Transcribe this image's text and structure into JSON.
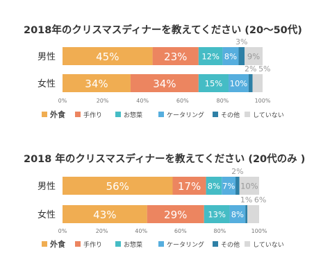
{
  "chart_data": [
    {
      "type": "bar",
      "orientation": "horizontal",
      "stacked": true,
      "title": "2018年のクリスマスディナーを教えてください (20〜50代)",
      "categories": [
        "男性",
        "女性"
      ],
      "series": [
        {
          "name": "外食",
          "values": [
            45,
            34
          ],
          "labels": [
            "45%",
            "34%"
          ]
        },
        {
          "name": "手作り",
          "values": [
            23,
            34
          ],
          "labels": [
            "23%",
            "34%"
          ]
        },
        {
          "name": "お惣菜",
          "values": [
            12,
            15
          ],
          "labels": [
            "12%",
            "15%"
          ]
        },
        {
          "name": "ケータリング",
          "values": [
            8,
            10
          ],
          "labels": [
            "8%",
            "10%"
          ]
        },
        {
          "name": "その他",
          "values": [
            3,
            2
          ],
          "labels": [
            "3%",
            "2%"
          ]
        },
        {
          "name": "していない",
          "values": [
            9,
            5
          ],
          "labels": [
            "9%",
            "5%"
          ]
        }
      ],
      "xticks": [
        "0%",
        "20%",
        "40%",
        "60%",
        "80%",
        "100%"
      ],
      "xlim": [
        0,
        100
      ],
      "grid": false,
      "legend": "bottom"
    },
    {
      "type": "bar",
      "orientation": "horizontal",
      "stacked": true,
      "title": "2018 年のクリスマスディナーを教えてください (20代のみ )",
      "categories": [
        "男性",
        "女性"
      ],
      "series": [
        {
          "name": "外食",
          "values": [
            56,
            43
          ],
          "labels": [
            "56%",
            "43%"
          ]
        },
        {
          "name": "手作り",
          "values": [
            17,
            29
          ],
          "labels": [
            "17%",
            "29%"
          ]
        },
        {
          "name": "お惣菜",
          "values": [
            8,
            13
          ],
          "labels": [
            "8%",
            "13%"
          ]
        },
        {
          "name": "ケータリング",
          "values": [
            7,
            8
          ],
          "labels": [
            "7%",
            "8%"
          ]
        },
        {
          "name": "その他",
          "values": [
            2,
            1
          ],
          "labels": [
            "2%",
            "1%"
          ]
        },
        {
          "name": "していない",
          "values": [
            10,
            6
          ],
          "labels": [
            "10%",
            "6%"
          ]
        }
      ],
      "xticks": [
        "0%",
        "20%",
        "40%",
        "60%",
        "80%",
        "100%"
      ],
      "xlim": [
        0,
        100
      ],
      "grid": false,
      "legend": "bottom"
    }
  ],
  "colors": {
    "外食": "#f0ad52",
    "手作り": "#ec8560",
    "お惣菜": "#45bcc5",
    "ケータリング": "#56aede",
    "その他": "#2e80a6",
    "していない": "#d9d9d9"
  }
}
